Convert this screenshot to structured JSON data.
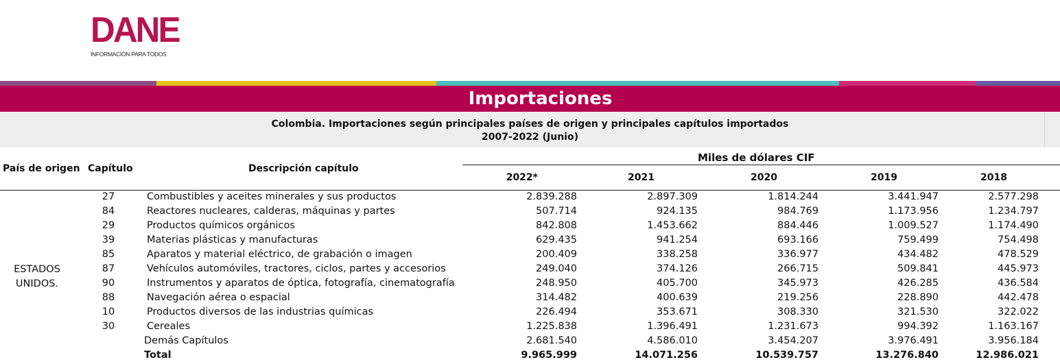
{
  "logo": {
    "wordmark": "DANE",
    "tagline": "INFORMACIÓN PARA TODOS"
  },
  "stripe_colors": [
    "#8b4d84",
    "#e4c21d",
    "#4cbcbc",
    "#cf2c7b",
    "#6a5aa8"
  ],
  "title": "Importaciones",
  "subtitle": {
    "line1": "Colombia. Importaciones según principales países de origen y principales capítulos importados",
    "line2": "2007-2022 (Junio)"
  },
  "table": {
    "headers": {
      "country": "País de origen",
      "chapter": "Capítulo",
      "description": "Descripción capítulo",
      "group": "Miles de dólares CIF",
      "years": [
        "2022*",
        "2021",
        "2020",
        "2019",
        "2018"
      ]
    },
    "country": {
      "line1": "ESTADOS",
      "line2": "UNIDOS."
    },
    "rows": [
      {
        "chapter": "27",
        "description": "Combustibles y aceites minerales y sus productos",
        "values": [
          "2.839.288",
          "2.897.309",
          "1.814.244",
          "3.441.947",
          "2.577.298"
        ]
      },
      {
        "chapter": "84",
        "description": "Reactores nucleares, calderas, máquinas y partes",
        "values": [
          "507.714",
          "924.135",
          "984.769",
          "1.173.956",
          "1.234.797"
        ]
      },
      {
        "chapter": "29",
        "description": "Productos químicos orgánicos",
        "values": [
          "842.808",
          "1.453.662",
          "884.446",
          "1.009.527",
          "1.174.490"
        ]
      },
      {
        "chapter": "39",
        "description": "Materias plásticas y manufacturas",
        "values": [
          "629.435",
          "941.254",
          "693.166",
          "759.499",
          "754.498"
        ]
      },
      {
        "chapter": "85",
        "description": "Aparatos y material eléctrico, de grabación o imagen",
        "values": [
          "200.409",
          "338.258",
          "336.977",
          "434.482",
          "478.529"
        ]
      },
      {
        "chapter": "87",
        "description": "Vehículos automóviles, tractores, ciclos, partes y accesorios",
        "values": [
          "249.040",
          "374.126",
          "266.715",
          "509.841",
          "445.973"
        ]
      },
      {
        "chapter": "90",
        "description": "Instrumentos y aparatos de óptica, fotografía, cinematografía",
        "values": [
          "248.950",
          "405.700",
          "345.973",
          "426.285",
          "436.584"
        ]
      },
      {
        "chapter": "88",
        "description": "Navegación aérea o espacial",
        "values": [
          "314.482",
          "400.639",
          "219.256",
          "228.890",
          "442.478"
        ]
      },
      {
        "chapter": "10",
        "description": "Productos diversos de las industrias químicas",
        "values": [
          "226.494",
          "353.671",
          "308.330",
          "321.530",
          "322.022"
        ]
      },
      {
        "chapter": "30",
        "description": "Cereales",
        "values": [
          "1.225.838",
          "1.396.491",
          "1.231.673",
          "994.392",
          "1.163.167"
        ]
      }
    ],
    "others": {
      "label": "Demás Capítulos",
      "values": [
        "2.681.540",
        "4.586.010",
        "3.454.207",
        "3.976.491",
        "3.956.184"
      ]
    },
    "total": {
      "label": "Total",
      "values": [
        "9.965.999",
        "14.071.256",
        "10.539.757",
        "13.276.840",
        "12.986.021"
      ]
    }
  }
}
